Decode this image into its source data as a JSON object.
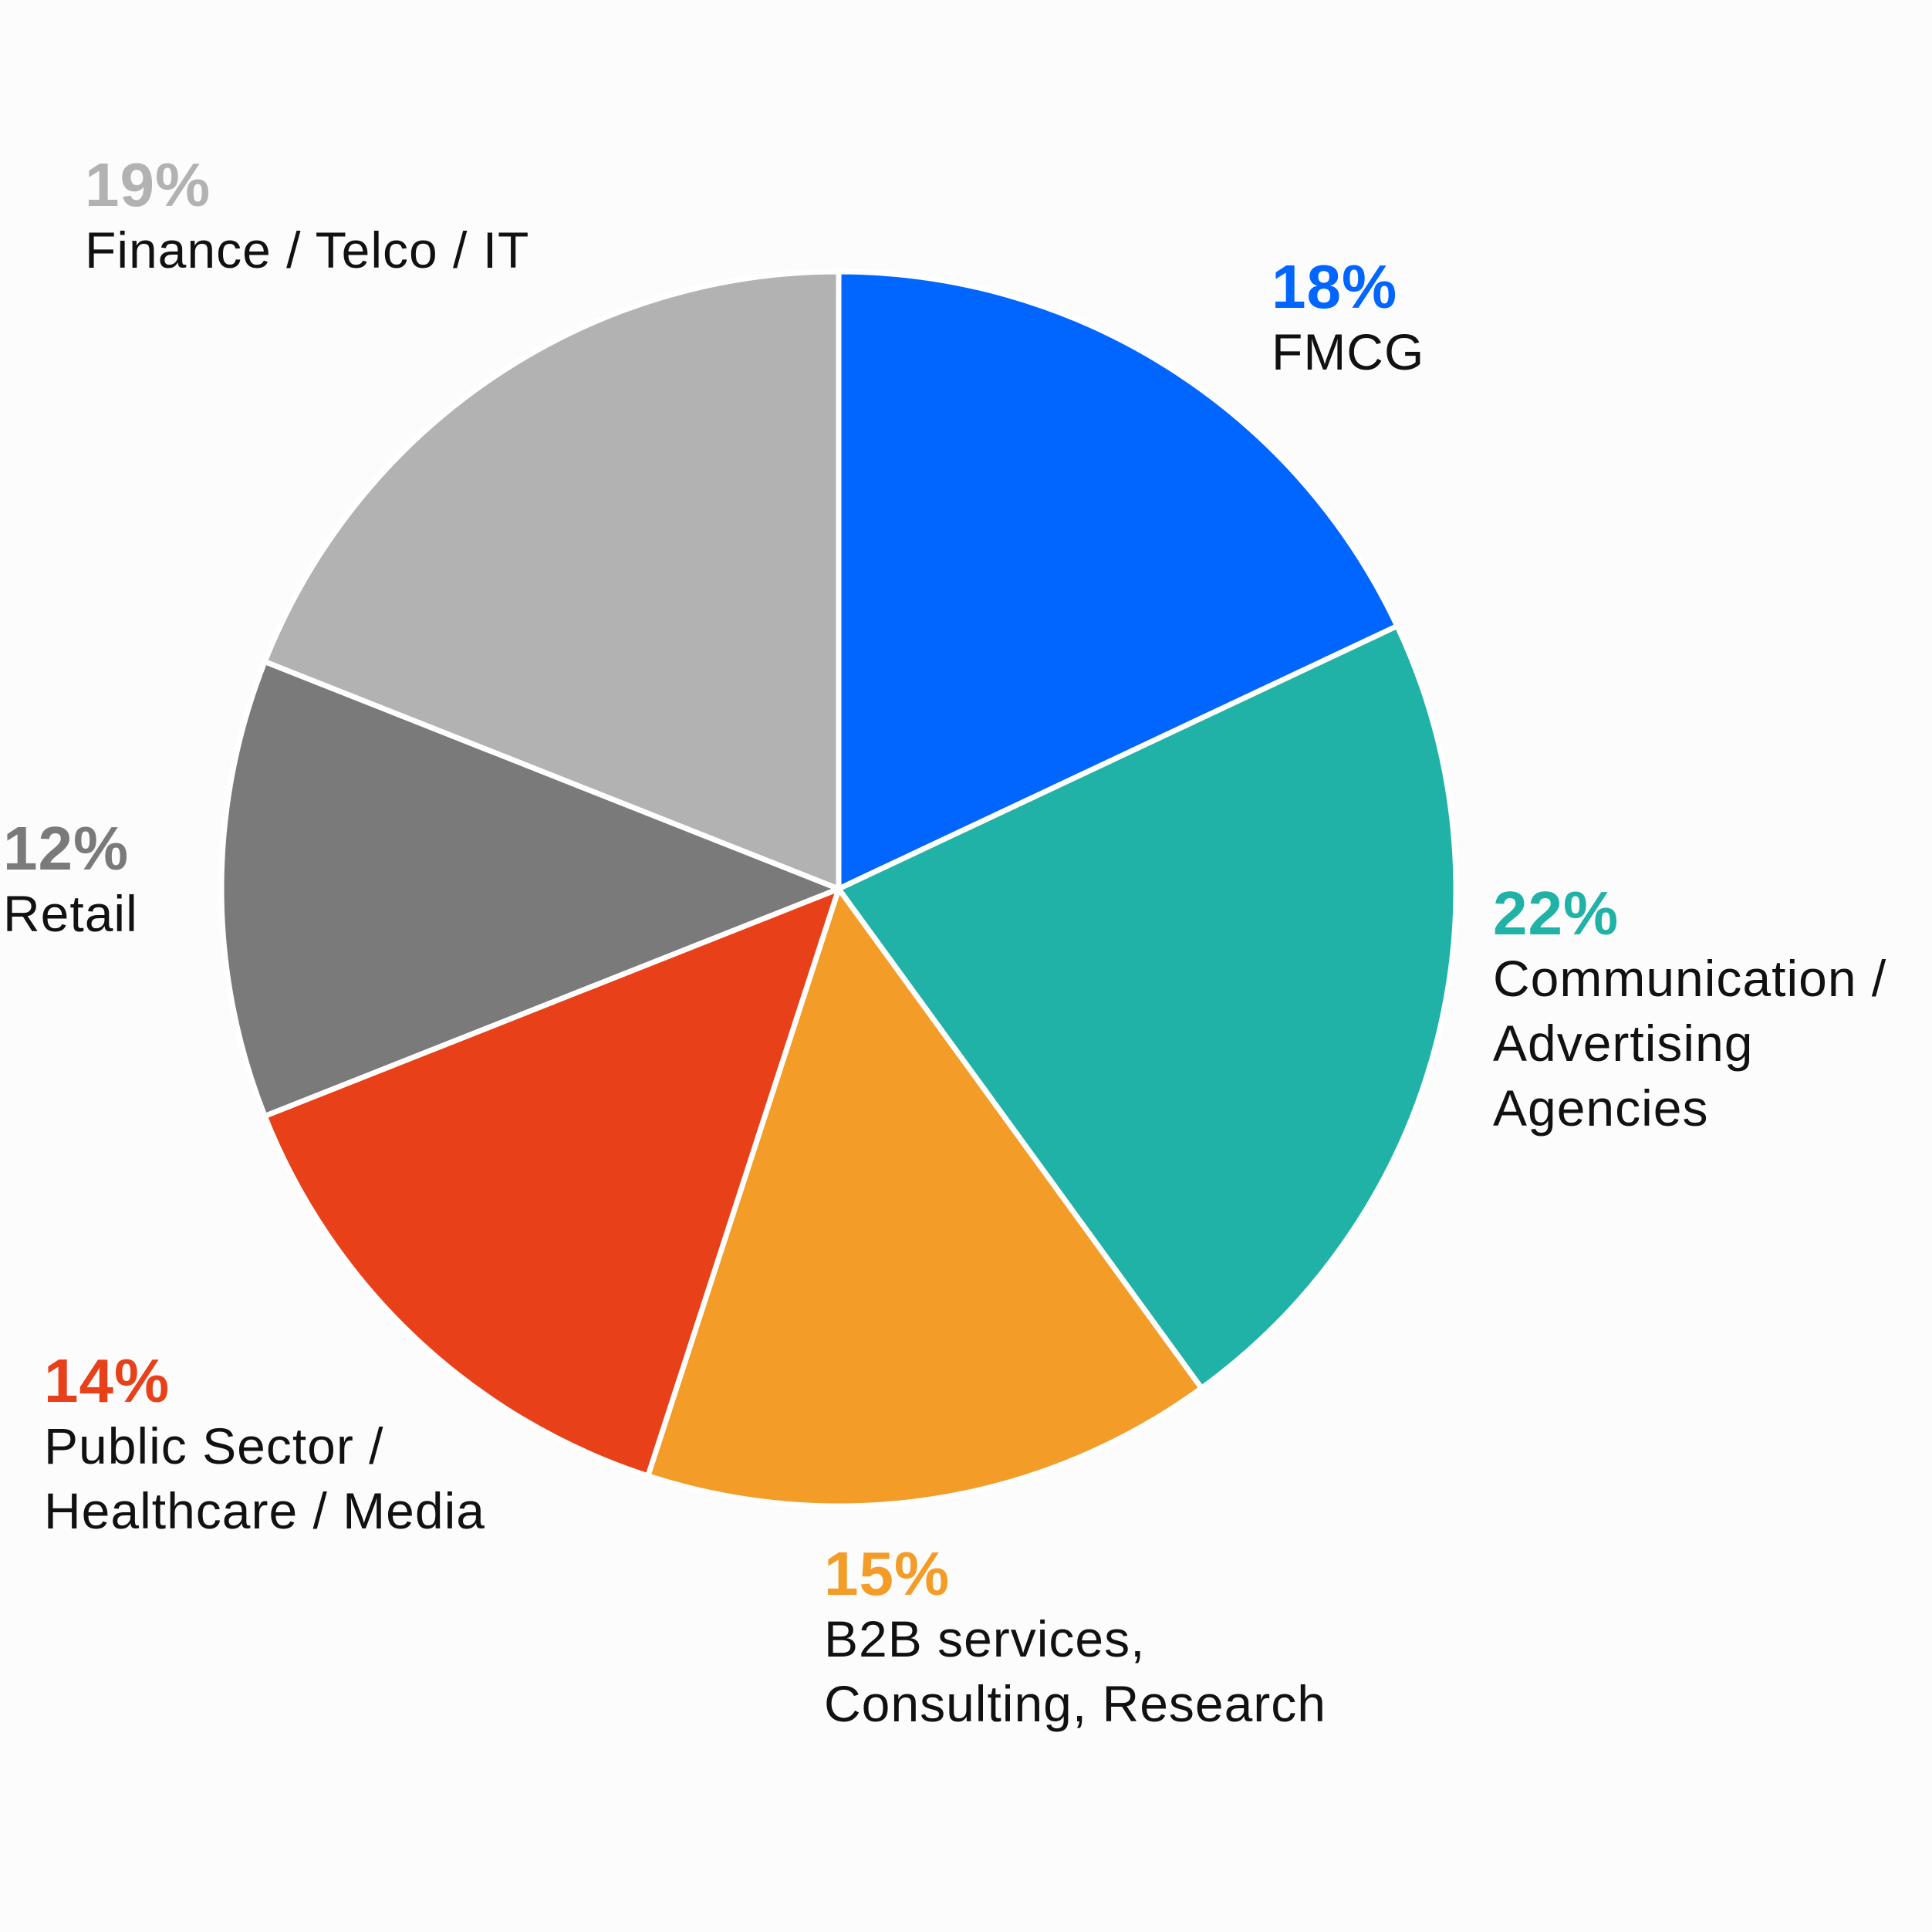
{
  "chart_data": {
    "type": "pie",
    "start_angle": "12 o'clock",
    "direction": "clockwise",
    "slices": [
      {
        "key": "fmcg",
        "value": 18,
        "label": "18%",
        "name_lines": [
          "FMCG"
        ],
        "color": "#0066FF"
      },
      {
        "key": "comm",
        "value": 22,
        "label": "22%",
        "name_lines": [
          "Communication /",
          "Advertising",
          "Agencies"
        ],
        "color": "#20B2A6"
      },
      {
        "key": "b2b",
        "value": 15,
        "label": "15%",
        "name_lines": [
          "B2B services,",
          "Consulting, Research"
        ],
        "color": "#F39C28"
      },
      {
        "key": "public",
        "value": 14,
        "label": "14%",
        "name_lines": [
          "Public Sector /",
          "Healthcare / Media"
        ],
        "color": "#E84019"
      },
      {
        "key": "retail",
        "value": 12,
        "label": "12%",
        "name_lines": [
          "Retail"
        ],
        "color": "#7A7A7A"
      },
      {
        "key": "finance",
        "value": 19,
        "label": "19%",
        "name_lines": [
          "Finance / Telco / IT"
        ],
        "color": "#B2B2B2"
      }
    ],
    "separator_color": "#FFFFFF"
  }
}
